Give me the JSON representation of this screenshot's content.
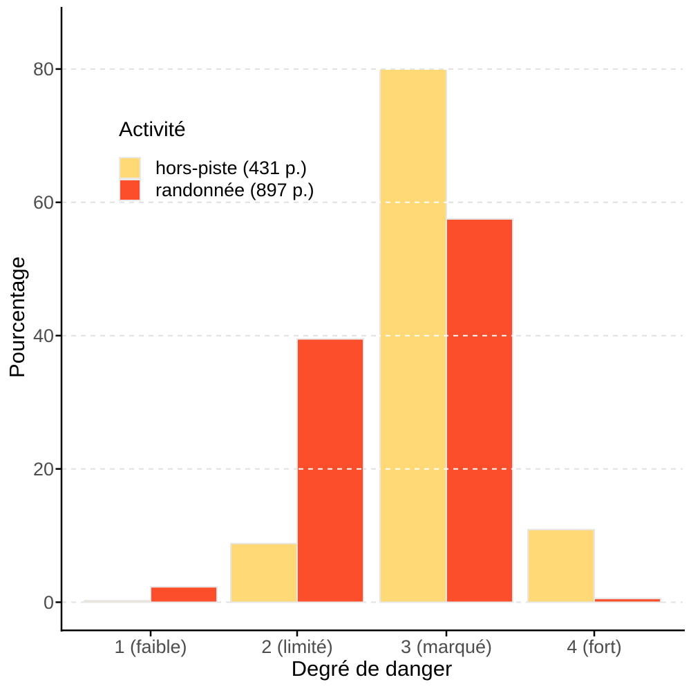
{
  "chart_data": {
    "type": "bar",
    "title": "",
    "xlabel": "Degré de danger",
    "ylabel": "Pourcentage",
    "categories": [
      "1 (faible)",
      "2 (limité)",
      "3 (marqué)",
      "4 (fort)"
    ],
    "yticks": [
      0,
      20,
      40,
      60,
      80
    ],
    "ylim": [
      0,
      89
    ],
    "grid": "horizontal-dashed",
    "legend_title": "Activité",
    "legend_position": "inside-top-left",
    "series": [
      {
        "name": "hors-piste (431 p.)",
        "color": "#FED976",
        "values": [
          0.23,
          8.8,
          80.0,
          10.9
        ]
      },
      {
        "name": "randonnée (897 p.)",
        "color": "#FC4E2A",
        "values": [
          2.3,
          39.5,
          57.5,
          0.55
        ]
      }
    ]
  },
  "colors": {
    "background": "#FFFFFF",
    "gridline": "#E1E1E1",
    "grid_over_bars": "#FFFFFF",
    "axis": "#000000",
    "tick_label": "#4D4D4D",
    "bar_border": "#E6E6E6"
  }
}
